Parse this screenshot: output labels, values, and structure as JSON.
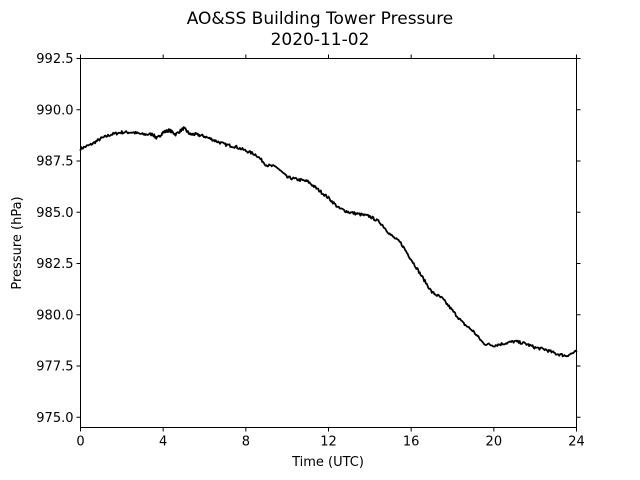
{
  "chart_data": {
    "type": "line",
    "title": "AO&SS Building Tower Pressure",
    "subtitle": "2020-11-02",
    "xlabel": "Time (UTC)",
    "ylabel": "Pressure (hPa)",
    "xlim": [
      0,
      24
    ],
    "ylim": [
      974.5,
      992.5
    ],
    "xticks": [
      0,
      4,
      8,
      12,
      16,
      20,
      24
    ],
    "xtick_labels": [
      "0",
      "4",
      "8",
      "12",
      "16",
      "20",
      "24"
    ],
    "yticks": [
      975.0,
      977.5,
      980.0,
      982.5,
      985.0,
      987.5,
      990.0,
      992.5
    ],
    "ytick_labels": [
      "975.0",
      "977.5",
      "980.0",
      "982.5",
      "985.0",
      "987.5",
      "990.0",
      "992.5"
    ],
    "grid": false,
    "line_color": "#000000",
    "series": [
      {
        "x": [
          0,
          0.5,
          1,
          1.5,
          2,
          2.5,
          3,
          3.5,
          3.7,
          4,
          4.3,
          4.6,
          5,
          5.3,
          5.6,
          6,
          6.5,
          7,
          7.5,
          8,
          8.5,
          9,
          9.5,
          10,
          10.5,
          11,
          11.5,
          12,
          12.5,
          13,
          13.5,
          14,
          14.5,
          15,
          15.5,
          16,
          16.5,
          17,
          17.5,
          18,
          18.5,
          19,
          19.5,
          20,
          20.5,
          21,
          21.5,
          22,
          22.5,
          23,
          23.5,
          24
        ],
        "y": [
          988.1,
          988.3,
          988.6,
          988.8,
          988.9,
          988.9,
          988.8,
          988.8,
          988.6,
          988.9,
          989.0,
          988.8,
          989.1,
          988.8,
          988.8,
          988.7,
          988.5,
          988.3,
          988.2,
          988.0,
          987.8,
          987.3,
          987.2,
          986.7,
          986.6,
          986.5,
          986.1,
          985.7,
          985.2,
          985.0,
          984.9,
          984.8,
          984.5,
          983.9,
          983.5,
          982.7,
          981.9,
          981.1,
          980.8,
          980.2,
          979.6,
          979.2,
          978.6,
          978.5,
          978.6,
          978.7,
          978.6,
          978.4,
          978.3,
          978.1,
          978.0,
          978.2
        ]
      }
    ]
  }
}
